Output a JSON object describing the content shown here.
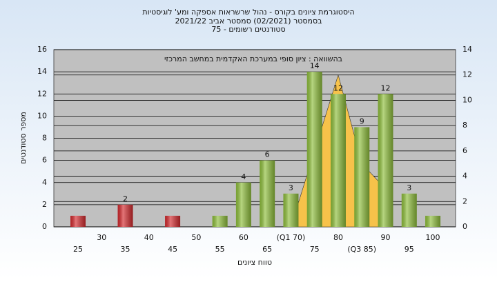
{
  "chart_data": {
    "type": "bar",
    "title_lines": [
      "היסטוגרמת ציונים בקורס - נהול שרשראות אספקה ומע' לוגיסטיות",
      "בסמסטר  (02/2021)  סמסטר אביב 2021/22",
      "סטודנטים רשומים - 75"
    ],
    "annotation": "בהשוואה : ציון סופי במערכת האקדמית במחשב המרכזי",
    "x_label": "טווח ציונים",
    "y_label": "מספר סטודנטים",
    "categories": [
      "25",
      "30",
      "35",
      "40",
      "45",
      "50",
      "55",
      "60",
      "65",
      "(Q1 70)",
      "75",
      "80",
      "(Q3 85)",
      "90",
      "95",
      "100"
    ],
    "series": [
      {
        "type": "bar",
        "values": [
          1,
          0,
          2,
          0,
          1,
          0,
          1,
          4,
          6,
          3,
          14,
          12,
          9,
          12,
          3,
          1
        ],
        "value_labels": [
          null,
          null,
          "2",
          null,
          null,
          null,
          null,
          "4",
          "6",
          "3",
          "14",
          "12",
          "9",
          "12",
          "3",
          null
        ],
        "colors": [
          "#d42a2e",
          "#d42a2e",
          "#d42a2e",
          "#d42a2e",
          "#d42a2e",
          "#d42a2e",
          "#8fbf3c",
          "#8fbf3c",
          "#8fbf3c",
          "#8fbf3c",
          "#8fbf3c",
          "#8fbf3c",
          "#8fbf3c",
          "#8fbf3c",
          "#8fbf3c",
          "#8fbf3c"
        ]
      },
      {
        "type": "area",
        "axis": "y2",
        "color": "#f7c24a",
        "values": [
          null,
          null,
          null,
          null,
          null,
          null,
          null,
          null,
          null,
          0,
          6,
          12,
          5,
          3,
          null,
          null
        ]
      }
    ],
    "ylim": [
      0,
      16
    ],
    "yticks": [
      0,
      2,
      4,
      6,
      8,
      10,
      12,
      14,
      16
    ],
    "y2lim": [
      0,
      14
    ],
    "y2ticks": [
      0,
      2,
      4,
      6,
      8,
      10,
      12,
      14
    ],
    "grid": true
  }
}
